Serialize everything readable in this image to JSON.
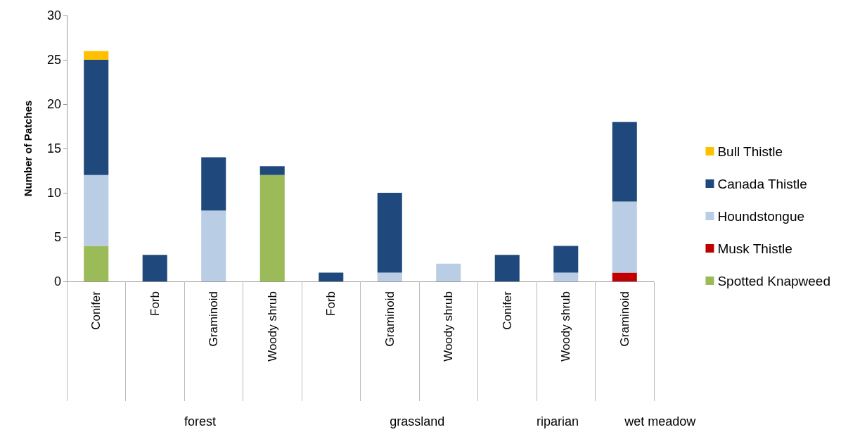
{
  "chart_data": {
    "type": "bar",
    "stacked": true,
    "ylabel": "Number of Patches",
    "categories": [
      "Conifer",
      "Forb",
      "Graminoid",
      "Woody shrub",
      "Forb",
      "Graminoid",
      "Woody shrub",
      "Conifer",
      "Woody shrub",
      "Graminoid"
    ],
    "series": [
      {
        "name": "Spotted Knapweed",
        "color": "#9bbb59",
        "values": [
          4,
          null,
          null,
          12,
          null,
          null,
          null,
          null,
          null,
          null
        ]
      },
      {
        "name": "Musk Thistle",
        "color": "#c00000",
        "values": [
          null,
          null,
          null,
          null,
          null,
          null,
          null,
          null,
          null,
          1
        ]
      },
      {
        "name": "Houndstongue",
        "color": "#b9cde5",
        "values": [
          8,
          null,
          8,
          null,
          null,
          1,
          2,
          null,
          1,
          8
        ]
      },
      {
        "name": "Canada Thistle",
        "color": "#1f497d",
        "values": [
          13,
          3,
          6,
          1,
          1,
          9,
          null,
          3,
          3,
          9
        ]
      },
      {
        "name": "Bull Thistle",
        "color": "#ffc000",
        "values": [
          1,
          null,
          null,
          null,
          null,
          null,
          null,
          null,
          null,
          null
        ]
      }
    ],
    "ylim": [
      0,
      30
    ],
    "yticks": [
      0,
      5,
      10,
      15,
      20,
      25,
      30
    ],
    "grid": false,
    "legend": "right",
    "annotations": [
      "forest",
      "grassland",
      "riparian",
      "wet meadow"
    ]
  }
}
